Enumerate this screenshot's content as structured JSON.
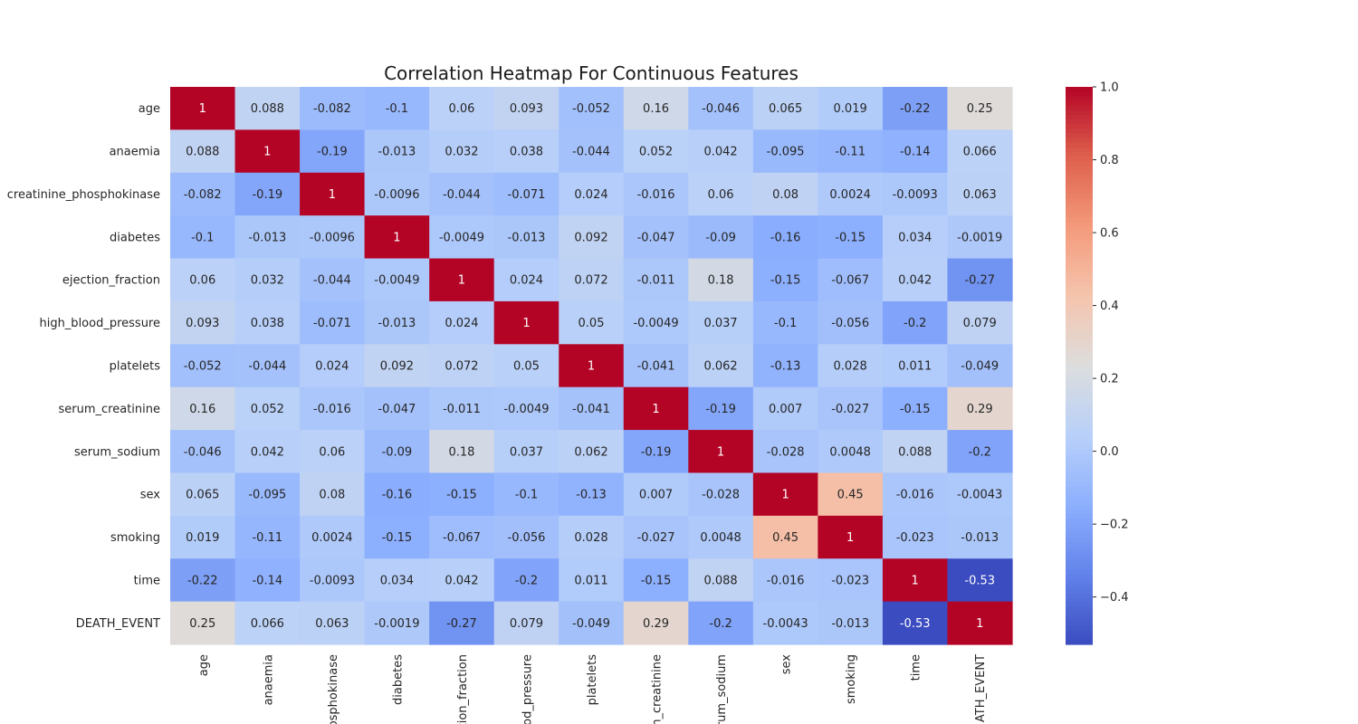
{
  "chart_data": {
    "type": "heatmap",
    "title": "Correlation Heatmap For Continuous Features",
    "row_labels": [
      "age",
      "anaemia",
      "creatinine_phosphokinase",
      "diabetes",
      "ejection_fraction",
      "high_blood_pressure",
      "platelets",
      "serum_creatinine",
      "serum_sodium",
      "sex",
      "smoking",
      "time",
      "DEATH_EVENT"
    ],
    "col_labels_visible": [
      "age",
      "anaemia",
      "osphokinase",
      "diabetes",
      "ction_fraction",
      "ood_pressure",
      "platelets",
      "m_creatinine",
      "erum_sodium",
      "sex",
      "smoking",
      "time",
      "ATH_EVENT"
    ],
    "cells": [
      [
        "1",
        "0.088",
        "-0.082",
        "-0.1",
        "0.06",
        "0.093",
        "-0.052",
        "0.16",
        "-0.046",
        "0.065",
        "0.019",
        "-0.22",
        "0.25"
      ],
      [
        "0.088",
        "1",
        "-0.19",
        "-0.013",
        "0.032",
        "0.038",
        "-0.044",
        "0.052",
        "0.042",
        "-0.095",
        "-0.11",
        "-0.14",
        "0.066"
      ],
      [
        "-0.082",
        "-0.19",
        "1",
        "-0.0096",
        "-0.044",
        "-0.071",
        "0.024",
        "-0.016",
        "0.06",
        "0.08",
        "0.0024",
        "-0.0093",
        "0.063"
      ],
      [
        "-0.1",
        "-0.013",
        "-0.0096",
        "1",
        "-0.0049",
        "-0.013",
        "0.092",
        "-0.047",
        "-0.09",
        "-0.16",
        "-0.15",
        "0.034",
        "-0.0019"
      ],
      [
        "0.06",
        "0.032",
        "-0.044",
        "-0.0049",
        "1",
        "0.024",
        "0.072",
        "-0.011",
        "0.18",
        "-0.15",
        "-0.067",
        "0.042",
        "-0.27"
      ],
      [
        "0.093",
        "0.038",
        "-0.071",
        "-0.013",
        "0.024",
        "1",
        "0.05",
        "-0.0049",
        "0.037",
        "-0.1",
        "-0.056",
        "-0.2",
        "0.079"
      ],
      [
        "-0.052",
        "-0.044",
        "0.024",
        "0.092",
        "0.072",
        "0.05",
        "1",
        "-0.041",
        "0.062",
        "-0.13",
        "0.028",
        "0.011",
        "-0.049"
      ],
      [
        "0.16",
        "0.052",
        "-0.016",
        "-0.047",
        "-0.011",
        "-0.0049",
        "-0.041",
        "1",
        "-0.19",
        "0.007",
        "-0.027",
        "-0.15",
        "0.29"
      ],
      [
        "-0.046",
        "0.042",
        "0.06",
        "-0.09",
        "0.18",
        "0.037",
        "0.062",
        "-0.19",
        "1",
        "-0.028",
        "0.0048",
        "0.088",
        "-0.2"
      ],
      [
        "0.065",
        "-0.095",
        "0.08",
        "-0.16",
        "-0.15",
        "-0.1",
        "-0.13",
        "0.007",
        "-0.028",
        "1",
        "0.45",
        "-0.016",
        "-0.0043"
      ],
      [
        "0.019",
        "-0.11",
        "0.0024",
        "-0.15",
        "-0.067",
        "-0.056",
        "0.028",
        "-0.027",
        "0.0048",
        "0.45",
        "1",
        "-0.023",
        "-0.013"
      ],
      [
        "-0.22",
        "-0.14",
        "-0.0093",
        "0.034",
        "0.042",
        "-0.2",
        "0.011",
        "-0.15",
        "0.088",
        "-0.016",
        "-0.023",
        "1",
        "-0.53"
      ],
      [
        "0.25",
        "0.066",
        "0.063",
        "-0.0019",
        "-0.27",
        "0.079",
        "-0.049",
        "0.29",
        "-0.2",
        "-0.0043",
        "-0.013",
        "-0.53",
        "1"
      ]
    ],
    "colormap": "coolwarm",
    "vmin": -0.53,
    "vmax": 1.0,
    "colorbar_ticks": [
      "1.0",
      "0.8",
      "0.6",
      "0.4",
      "0.2",
      "0.0",
      "−0.2",
      "−0.4"
    ],
    "colorbar_tick_values": [
      1.0,
      0.8,
      0.6,
      0.4,
      0.2,
      0.0,
      -0.2,
      -0.4
    ],
    "annotated": true,
    "legend_position": "right"
  }
}
